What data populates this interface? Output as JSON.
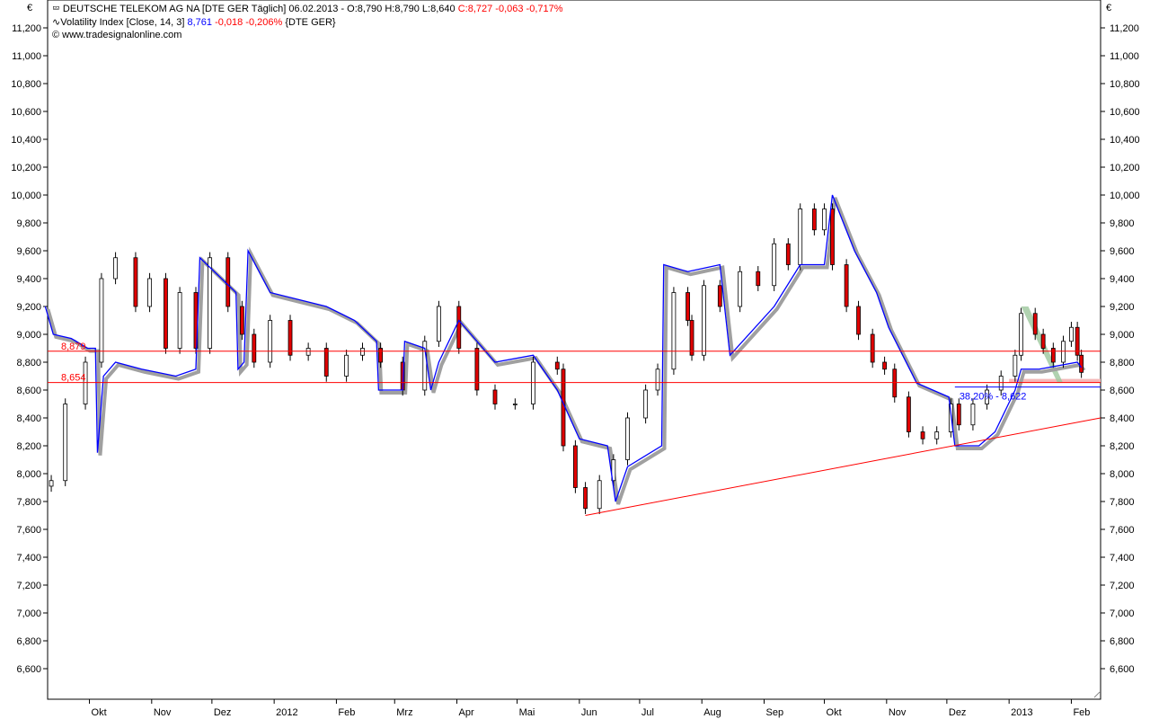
{
  "header": {
    "line1": {
      "icon": "candlestick-icon",
      "instrument": "DEUTSCHE TELEKOM AG NA [DTE GER  Täglich]",
      "info": "06.02.2013 - O:8,790 H:8,790 L:8,640",
      "close_change": "C:8,727 -0,063 -0,717%"
    },
    "line2": {
      "icon": "line-wave-icon",
      "indicator": "Volatility Index [Close, 14, 3]",
      "value": "8,761",
      "change": "-0,018 -0,206%",
      "symbol": "{DTE GER}"
    },
    "line3": {
      "icon": "copyright-icon",
      "text": "www.tradesignalonline.com"
    }
  },
  "colors": {
    "up": "#ffffff",
    "down": "#e00000",
    "volatility": "#0000ff",
    "shadow": "#a0a0a0",
    "levels": "#ff0000",
    "zone": "#f4b8b8",
    "channel": "#9cc79c"
  },
  "chart_data": {
    "type": "candlestick",
    "currency_label": "€",
    "ylim": [
      6600,
      11200
    ],
    "yticks": [
      "6,600",
      "6,800",
      "7,000",
      "7,200",
      "7,400",
      "7,600",
      "7,800",
      "8,000",
      "8,200",
      "8,400",
      "8,600",
      "8,800",
      "9,000",
      "9,200",
      "9,400",
      "9,600",
      "9,800",
      "10,000",
      "10,200",
      "10,400",
      "10,600",
      "10,800",
      "11,000",
      "11,200"
    ],
    "xticks": [
      {
        "date": "2011-10-01",
        "label": "Okt"
      },
      {
        "date": "2011-11-01",
        "label": "Nov"
      },
      {
        "date": "2011-12-01",
        "label": "Dez"
      },
      {
        "date": "2012-01-01",
        "label": "2012"
      },
      {
        "date": "2012-02-01",
        "label": "Feb"
      },
      {
        "date": "2012-03-01",
        "label": "Mrz"
      },
      {
        "date": "2012-04-01",
        "label": "Apr"
      },
      {
        "date": "2012-05-01",
        "label": "Mai"
      },
      {
        "date": "2012-06-01",
        "label": "Jun"
      },
      {
        "date": "2012-07-01",
        "label": "Jul"
      },
      {
        "date": "2012-08-01",
        "label": "Aug"
      },
      {
        "date": "2012-09-01",
        "label": "Sep"
      },
      {
        "date": "2012-10-01",
        "label": "Okt"
      },
      {
        "date": "2012-11-01",
        "label": "Nov"
      },
      {
        "date": "2012-12-01",
        "label": "Dez"
      },
      {
        "date": "2013-01-01",
        "label": "2013"
      },
      {
        "date": "2013-02-01",
        "label": "Feb"
      }
    ],
    "price_close": [
      [
        "2011-09-12",
        7.95
      ],
      [
        "2011-09-19",
        8.5
      ],
      [
        "2011-09-29",
        8.8
      ],
      [
        "2011-10-07",
        9.4
      ],
      [
        "2011-10-14",
        9.55
      ],
      [
        "2011-10-24",
        9.2
      ],
      [
        "2011-10-31",
        9.4
      ],
      [
        "2011-11-08",
        8.9
      ],
      [
        "2011-11-15",
        9.3
      ],
      [
        "2011-11-23",
        8.9
      ],
      [
        "2011-11-30",
        9.55
      ],
      [
        "2011-12-09",
        9.2
      ],
      [
        "2011-12-16",
        9.0
      ],
      [
        "2011-12-22",
        8.8
      ],
      [
        "2011-12-30",
        9.1
      ],
      [
        "2012-01-09",
        8.85
      ],
      [
        "2012-01-18",
        8.9
      ],
      [
        "2012-01-27",
        8.7
      ],
      [
        "2012-02-06",
        8.85
      ],
      [
        "2012-02-14",
        8.9
      ],
      [
        "2012-02-23",
        8.8
      ],
      [
        "2012-03-05",
        8.6
      ],
      [
        "2012-03-16",
        8.95
      ],
      [
        "2012-03-23",
        9.2
      ],
      [
        "2012-04-02",
        8.9
      ],
      [
        "2012-04-11",
        8.6
      ],
      [
        "2012-04-20",
        8.5
      ],
      [
        "2012-04-30",
        8.5
      ],
      [
        "2012-05-09",
        8.8
      ],
      [
        "2012-05-21",
        8.75
      ],
      [
        "2012-05-24",
        8.2
      ],
      [
        "2012-05-30",
        7.9
      ],
      [
        "2012-06-04",
        7.75
      ],
      [
        "2012-06-11",
        7.95
      ],
      [
        "2012-06-18",
        8.1
      ],
      [
        "2012-06-25",
        8.4
      ],
      [
        "2012-07-04",
        8.6
      ],
      [
        "2012-07-10",
        8.75
      ],
      [
        "2012-07-18",
        9.3
      ],
      [
        "2012-07-25",
        9.1
      ],
      [
        "2012-07-27",
        8.85
      ],
      [
        "2012-08-02",
        9.35
      ],
      [
        "2012-08-10",
        9.2
      ],
      [
        "2012-08-20",
        9.45
      ],
      [
        "2012-08-29",
        9.35
      ],
      [
        "2012-09-06",
        9.65
      ],
      [
        "2012-09-13",
        9.5
      ],
      [
        "2012-09-19",
        9.9
      ],
      [
        "2012-09-26",
        9.75
      ],
      [
        "2012-10-01",
        9.9
      ],
      [
        "2012-10-05",
        9.5
      ],
      [
        "2012-10-12",
        9.2
      ],
      [
        "2012-10-18",
        9.0
      ],
      [
        "2012-10-25",
        8.8
      ],
      [
        "2012-10-31",
        8.75
      ],
      [
        "2012-11-05",
        8.55
      ],
      [
        "2012-11-12",
        8.3
      ],
      [
        "2012-11-19",
        8.25
      ],
      [
        "2012-11-26",
        8.3
      ],
      [
        "2012-12-03",
        8.5
      ],
      [
        "2012-12-07",
        8.35
      ],
      [
        "2012-12-14",
        8.5
      ],
      [
        "2012-12-21",
        8.6
      ],
      [
        "2012-12-28",
        8.7
      ],
      [
        "2013-01-04",
        8.85
      ],
      [
        "2013-01-07",
        9.15
      ],
      [
        "2013-01-14",
        9.0
      ],
      [
        "2013-01-18",
        8.9
      ],
      [
        "2013-01-23",
        8.8
      ],
      [
        "2013-01-28",
        8.95
      ],
      [
        "2013-02-01",
        9.05
      ],
      [
        "2013-02-04",
        8.85
      ],
      [
        "2013-02-06",
        8.727
      ]
    ],
    "volatility_index": [
      [
        "2011-09-09",
        9.2
      ],
      [
        "2011-09-13",
        9.0
      ],
      [
        "2011-09-22",
        8.97
      ],
      [
        "2011-09-30",
        8.9
      ],
      [
        "2011-10-04",
        8.9
      ],
      [
        "2011-10-05",
        8.15
      ],
      [
        "2011-10-08",
        8.7
      ],
      [
        "2011-10-14",
        8.8
      ],
      [
        "2011-10-27",
        8.75
      ],
      [
        "2011-11-13",
        8.7
      ],
      [
        "2011-11-23",
        8.75
      ],
      [
        "2011-11-25",
        9.55
      ],
      [
        "2011-12-13",
        9.3
      ],
      [
        "2011-12-14",
        8.75
      ],
      [
        "2011-12-17",
        8.8
      ],
      [
        "2011-12-19",
        9.6
      ],
      [
        "2011-12-30",
        9.3
      ],
      [
        "2012-01-27",
        9.2
      ],
      [
        "2012-02-10",
        9.1
      ],
      [
        "2012-02-21",
        8.95
      ],
      [
        "2012-02-22",
        8.6
      ],
      [
        "2012-03-05",
        8.6
      ],
      [
        "2012-03-06",
        8.95
      ],
      [
        "2012-03-16",
        8.9
      ],
      [
        "2012-03-19",
        8.6
      ],
      [
        "2012-03-23",
        8.8
      ],
      [
        "2012-04-02",
        9.1
      ],
      [
        "2012-04-11",
        8.95
      ],
      [
        "2012-04-20",
        8.8
      ],
      [
        "2012-05-09",
        8.85
      ],
      [
        "2012-05-21",
        8.6
      ],
      [
        "2012-06-01",
        8.25
      ],
      [
        "2012-06-15",
        8.2
      ],
      [
        "2012-06-19",
        7.8
      ],
      [
        "2012-06-25",
        8.05
      ],
      [
        "2012-07-12",
        8.2
      ],
      [
        "2012-07-13",
        9.5
      ],
      [
        "2012-07-25",
        9.45
      ],
      [
        "2012-08-10",
        9.5
      ],
      [
        "2012-08-15",
        8.85
      ],
      [
        "2012-09-06",
        9.2
      ],
      [
        "2012-09-19",
        9.5
      ],
      [
        "2012-10-01",
        9.5
      ],
      [
        "2012-10-05",
        10.0
      ],
      [
        "2012-10-16",
        9.6
      ],
      [
        "2012-10-27",
        9.3
      ],
      [
        "2012-11-02",
        9.05
      ],
      [
        "2012-11-16",
        8.65
      ],
      [
        "2012-12-02",
        8.55
      ],
      [
        "2012-12-05",
        8.2
      ],
      [
        "2012-12-17",
        8.2
      ],
      [
        "2012-12-25",
        8.3
      ],
      [
        "2013-01-04",
        8.6
      ],
      [
        "2013-01-07",
        8.75
      ],
      [
        "2013-01-16",
        8.75
      ],
      [
        "2013-02-04",
        8.8
      ],
      [
        "2013-02-06",
        8.761
      ]
    ],
    "levels": [
      {
        "value": 8.879,
        "label": "8,879",
        "color": "#ff0000"
      },
      {
        "value": 8.654,
        "label": "8,654",
        "color": "#ff0000"
      }
    ],
    "fib_level": {
      "value": 8.622,
      "label": "38,20% - 8,622",
      "from": "2012-12-05",
      "color": "#0000ff"
    },
    "zone": {
      "from": "2013-01-01",
      "low": 8.654,
      "high": 8.68
    },
    "trendline": {
      "from": [
        "2012-06-04",
        7.7
      ],
      "to": [
        "2013-02-13",
        8.4
      ]
    },
    "channel": [
      [
        "2013-01-07",
        9.2
      ],
      [
        "2013-01-25",
        8.72
      ]
    ]
  }
}
